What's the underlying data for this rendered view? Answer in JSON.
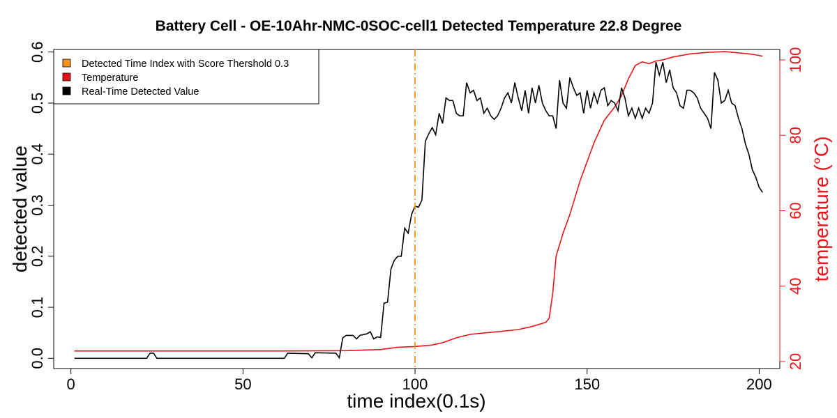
{
  "chart_data": {
    "type": "line",
    "title": "Battery Cell - OE-10Ahr-NMC-0SOC-cell1 Detected Temperature 22.8 Degree",
    "xlabel": "time index(0.1s)",
    "ylabel": "detected value",
    "y2label": "temperature (°C)",
    "xlim": [
      -5,
      206
    ],
    "ylim": [
      -0.02,
      0.605
    ],
    "y2lim": [
      20,
      100
    ],
    "xticks": [
      0,
      50,
      100,
      150,
      200
    ],
    "yticks": [
      0.0,
      0.1,
      0.2,
      0.3,
      0.4,
      0.5,
      0.6
    ],
    "y2ticks": [
      20,
      40,
      60,
      80,
      100
    ],
    "xtick_labels": [
      "0",
      "50",
      "100",
      "150",
      "200"
    ],
    "ytick_labels": [
      "0.0",
      "0.1",
      "0.2",
      "0.3",
      "0.4",
      "0.5",
      "0.6"
    ],
    "y2tick_labels": [
      "20",
      "40",
      "60",
      "80",
      "100"
    ],
    "grid": false,
    "legend": {
      "position": "top-left",
      "entries": [
        {
          "label": "Detected Time Index with Score Thershold 0.3",
          "color": "#f7941d"
        },
        {
          "label": "Temperature",
          "color": "#e8141a"
        },
        {
          "label": "Real-Time Detected Value",
          "color": "#000000"
        }
      ]
    },
    "threshold_line": {
      "x": 100,
      "color": "#f7941d",
      "style": "dashdot"
    },
    "series": [
      {
        "name": "Real-Time Detected Value",
        "axis": "left",
        "color": "#000000",
        "points": [
          [
            1,
            0
          ],
          [
            22,
            0
          ],
          [
            23,
            0.01
          ],
          [
            24,
            0.01
          ],
          [
            25,
            0
          ],
          [
            62,
            0
          ],
          [
            63,
            0.01
          ],
          [
            69,
            0.009
          ],
          [
            70,
            0.001
          ],
          [
            71,
            0.011
          ],
          [
            77,
            0.01
          ],
          [
            78,
            0.001
          ],
          [
            79,
            0.04
          ],
          [
            80,
            0.045
          ],
          [
            82,
            0.045
          ],
          [
            83,
            0.038
          ],
          [
            84,
            0.045
          ],
          [
            86,
            0.048
          ],
          [
            87,
            0.052
          ],
          [
            88,
            0.038
          ],
          [
            89,
            0.042
          ],
          [
            90,
            0.041
          ],
          [
            91,
            0.108
          ],
          [
            92,
            0.11
          ],
          [
            93,
            0.175
          ],
          [
            94,
            0.192
          ],
          [
            95,
            0.2
          ],
          [
            96,
            0.2
          ],
          [
            97,
            0.255
          ],
          [
            98,
            0.245
          ],
          [
            99,
            0.282
          ],
          [
            100,
            0.298
          ],
          [
            101,
            0.296
          ],
          [
            102,
            0.31
          ],
          [
            103,
            0.425
          ],
          [
            104,
            0.44
          ],
          [
            105,
            0.452
          ],
          [
            106,
            0.438
          ],
          [
            107,
            0.48
          ],
          [
            108,
            0.46
          ],
          [
            109,
            0.51
          ],
          [
            110,
            0.505
          ],
          [
            111,
            0.505
          ],
          [
            112,
            0.48
          ],
          [
            113,
            0.475
          ],
          [
            114,
            0.475
          ],
          [
            115,
            0.54
          ],
          [
            116,
            0.52
          ],
          [
            117,
            0.525
          ],
          [
            118,
            0.505
          ],
          [
            119,
            0.51
          ],
          [
            120,
            0.48
          ],
          [
            121,
            0.49
          ],
          [
            122,
            0.475
          ],
          [
            123,
            0.468
          ],
          [
            124,
            0.475
          ],
          [
            125,
            0.49
          ],
          [
            126,
            0.51
          ],
          [
            127,
            0.52
          ],
          [
            128,
            0.5
          ],
          [
            129,
            0.54
          ],
          [
            130,
            0.51
          ],
          [
            131,
            0.485
          ],
          [
            132,
            0.525
          ],
          [
            133,
            0.48
          ],
          [
            134,
            0.53
          ],
          [
            135,
            0.5
          ],
          [
            136,
            0.535
          ],
          [
            137,
            0.5
          ],
          [
            138,
            0.485
          ],
          [
            139,
            0.475
          ],
          [
            140,
            0.475
          ],
          [
            141,
            0.45
          ],
          [
            142,
            0.545
          ],
          [
            143,
            0.5
          ],
          [
            144,
            0.49
          ],
          [
            145,
            0.55
          ],
          [
            146,
            0.53
          ],
          [
            147,
            0.515
          ],
          [
            148,
            0.52
          ],
          [
            149,
            0.48
          ],
          [
            150,
            0.525
          ],
          [
            151,
            0.49
          ],
          [
            152,
            0.52
          ],
          [
            153,
            0.5
          ],
          [
            154,
            0.525
          ],
          [
            155,
            0.53
          ],
          [
            156,
            0.495
          ],
          [
            157,
            0.505
          ],
          [
            158,
            0.5
          ],
          [
            159,
            0.485
          ],
          [
            160,
            0.53
          ],
          [
            161,
            0.51
          ],
          [
            162,
            0.475
          ],
          [
            163,
            0.49
          ],
          [
            164,
            0.47
          ],
          [
            165,
            0.49
          ],
          [
            166,
            0.47
          ],
          [
            167,
            0.49
          ],
          [
            168,
            0.48
          ],
          [
            169,
            0.5
          ],
          [
            170,
            0.58
          ],
          [
            171,
            0.555
          ],
          [
            172,
            0.58
          ],
          [
            173,
            0.54
          ],
          [
            174,
            0.565
          ],
          [
            175,
            0.53
          ],
          [
            176,
            0.52
          ],
          [
            177,
            0.495
          ],
          [
            178,
            0.49
          ],
          [
            179,
            0.525
          ],
          [
            180,
            0.525
          ],
          [
            181,
            0.52
          ],
          [
            182,
            0.51
          ],
          [
            183,
            0.49
          ],
          [
            184,
            0.48
          ],
          [
            185,
            0.47
          ],
          [
            186,
            0.45
          ],
          [
            187,
            0.56
          ],
          [
            188,
            0.545
          ],
          [
            189,
            0.5
          ],
          [
            190,
            0.505
          ],
          [
            191,
            0.525
          ],
          [
            192,
            0.5
          ],
          [
            193,
            0.495
          ],
          [
            194,
            0.47
          ],
          [
            195,
            0.45
          ],
          [
            196,
            0.42
          ],
          [
            197,
            0.4
          ],
          [
            198,
            0.37
          ],
          [
            199,
            0.355
          ],
          [
            200,
            0.335
          ],
          [
            201,
            0.325
          ]
        ]
      },
      {
        "name": "Temperature",
        "axis": "right",
        "color": "#e8141a",
        "points": [
          [
            1,
            22.8
          ],
          [
            60,
            22.8
          ],
          [
            80,
            22.9
          ],
          [
            90,
            23.2
          ],
          [
            95,
            23.8
          ],
          [
            100,
            24.0
          ],
          [
            105,
            24.4
          ],
          [
            108,
            25.0
          ],
          [
            112,
            26.3
          ],
          [
            116,
            27.2
          ],
          [
            120,
            27.6
          ],
          [
            125,
            28.0
          ],
          [
            130,
            28.5
          ],
          [
            134,
            29.3
          ],
          [
            138,
            30.4
          ],
          [
            139,
            31.5
          ],
          [
            140,
            38.0
          ],
          [
            141,
            48.0
          ],
          [
            143,
            54.0
          ],
          [
            145,
            59.0
          ],
          [
            148,
            68.0
          ],
          [
            150,
            73.0
          ],
          [
            152,
            78.0
          ],
          [
            155,
            84.0
          ],
          [
            158,
            87.5
          ],
          [
            160,
            90.5
          ],
          [
            162,
            95.0
          ],
          [
            164,
            98.5
          ],
          [
            166,
            99.5
          ],
          [
            168,
            99.0
          ],
          [
            170,
            99.7
          ],
          [
            172,
            100.0
          ],
          [
            175,
            100.8
          ],
          [
            180,
            101.6
          ],
          [
            185,
            102.0
          ],
          [
            190,
            102.2
          ],
          [
            195,
            101.8
          ],
          [
            198,
            101.5
          ],
          [
            201,
            101.0
          ]
        ]
      }
    ]
  }
}
